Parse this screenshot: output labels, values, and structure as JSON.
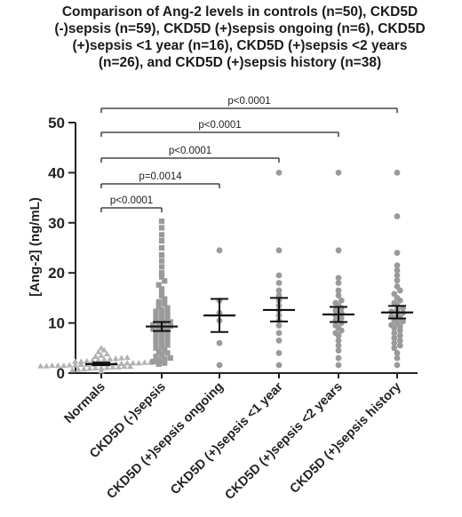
{
  "chart_data": {
    "type": "scatter",
    "title_lines": [
      "Comparison of Ang-2 levels in controls (n=50), CKD5D",
      "(-)sepsis (n=59), CKD5D (+)sepsis ongoing (n=6), CKD5D",
      "(+)sepsis <1 year (n=16), CKD5D (+)sepsis <2 years",
      "(n=26), and CKD5D (+)sepsis history (n=38)"
    ],
    "ylabel": "[Ang-2] (ng/mL)",
    "xlabel": "",
    "ylim": [
      0,
      50
    ],
    "yticks": [
      0,
      10,
      20,
      30,
      40,
      50
    ],
    "grid": false,
    "categories": [
      "Normals",
      "CKD5D (-)sepsis",
      "CKD5D (+)sepsis ongoing",
      "CKD5D (+)sepsis <1 year",
      "CKD5D (+)sepsis <2 years",
      "CKD5D (+)sepsis history"
    ],
    "series": [
      {
        "marker": "triangle",
        "color": "#b3b3b3",
        "values": [
          0.4,
          0.6,
          0.7,
          0.8,
          0.9,
          1.0,
          1.0,
          1.1,
          1.2,
          1.2,
          1.3,
          1.3,
          1.4,
          1.4,
          1.5,
          1.5,
          1.5,
          1.6,
          1.6,
          1.7,
          1.7,
          1.7,
          1.8,
          1.8,
          1.8,
          1.9,
          1.9,
          2.0,
          2.0,
          2.0,
          2.1,
          2.1,
          2.2,
          2.2,
          2.3,
          2.3,
          2.4,
          2.5,
          2.6,
          2.7,
          2.8,
          2.9,
          3.0,
          3.1,
          3.3,
          3.5,
          3.8,
          4.2,
          4.6,
          5.0
        ],
        "mean": 1.8,
        "sem": [
          1.6,
          2.1
        ]
      },
      {
        "marker": "square",
        "color": "#9a9a9a",
        "values": [
          1.8,
          2.0,
          2.3,
          2.5,
          2.8,
          3.0,
          3.3,
          3.6,
          4.0,
          4.3,
          4.6,
          5.0,
          5.3,
          5.6,
          6.0,
          6.3,
          6.6,
          7.0,
          7.3,
          7.6,
          8.0,
          8.2,
          8.5,
          8.8,
          9.0,
          9.2,
          9.4,
          9.6,
          9.8,
          10.0,
          10.2,
          10.5,
          10.8,
          11.0,
          11.3,
          11.6,
          12.0,
          12.3,
          12.6,
          13.0,
          13.4,
          13.8,
          14.2,
          14.8,
          15.4,
          16.0,
          16.8,
          17.6,
          18.4,
          19.2,
          20.0,
          21.2,
          22.4,
          23.6,
          25.0,
          26.4,
          27.6,
          29.0,
          30.3
        ],
        "mean": 9.3,
        "sem": [
          8.4,
          10.2
        ]
      },
      {
        "marker": "circle",
        "color": "#9a9a9a",
        "values": [
          1.6,
          6.0,
          10.5,
          12.0,
          14.5,
          24.5
        ],
        "mean": 11.5,
        "sem": [
          8.2,
          14.8
        ]
      },
      {
        "marker": "circle",
        "color": "#9a9a9a",
        "values": [
          1.6,
          4.0,
          6.5,
          8.0,
          9.5,
          10.5,
          11.5,
          12.5,
          13.5,
          14.5,
          15.5,
          16.5,
          18.0,
          19.5,
          24.5,
          40.0
        ],
        "mean": 12.6,
        "sem": [
          10.3,
          15.0
        ]
      },
      {
        "marker": "circle",
        "color": "#9a9a9a",
        "values": [
          1.6,
          3.0,
          4.5,
          5.5,
          6.5,
          7.5,
          8.0,
          8.5,
          9.0,
          9.5,
          10.0,
          10.5,
          11.0,
          11.5,
          12.0,
          12.5,
          13.0,
          13.5,
          14.0,
          14.5,
          15.5,
          16.5,
          18.0,
          19.0,
          24.5,
          40.0
        ],
        "mean": 11.7,
        "sem": [
          10.2,
          13.2
        ]
      },
      {
        "marker": "circle",
        "color": "#9a9a9a",
        "values": [
          1.6,
          3.0,
          4.0,
          5.0,
          5.5,
          6.0,
          6.5,
          7.0,
          7.5,
          8.0,
          8.5,
          9.0,
          9.3,
          9.6,
          10.0,
          10.3,
          10.6,
          11.0,
          11.3,
          11.6,
          12.0,
          12.3,
          12.6,
          13.0,
          13.5,
          14.0,
          14.5,
          15.0,
          15.8,
          16.5,
          17.3,
          18.5,
          19.5,
          20.5,
          21.5,
          24.0,
          31.3,
          40.0
        ],
        "mean": 12.1,
        "sem": [
          10.9,
          13.4
        ]
      }
    ],
    "comparisons": [
      {
        "from": 0,
        "to": 1,
        "label": "p<0.0001"
      },
      {
        "from": 0,
        "to": 2,
        "label": "p=0.0014"
      },
      {
        "from": 0,
        "to": 3,
        "label": "p<0.0001"
      },
      {
        "from": 0,
        "to": 4,
        "label": "p<0.0001"
      },
      {
        "from": 0,
        "to": 5,
        "label": "p<0.0001"
      }
    ]
  }
}
